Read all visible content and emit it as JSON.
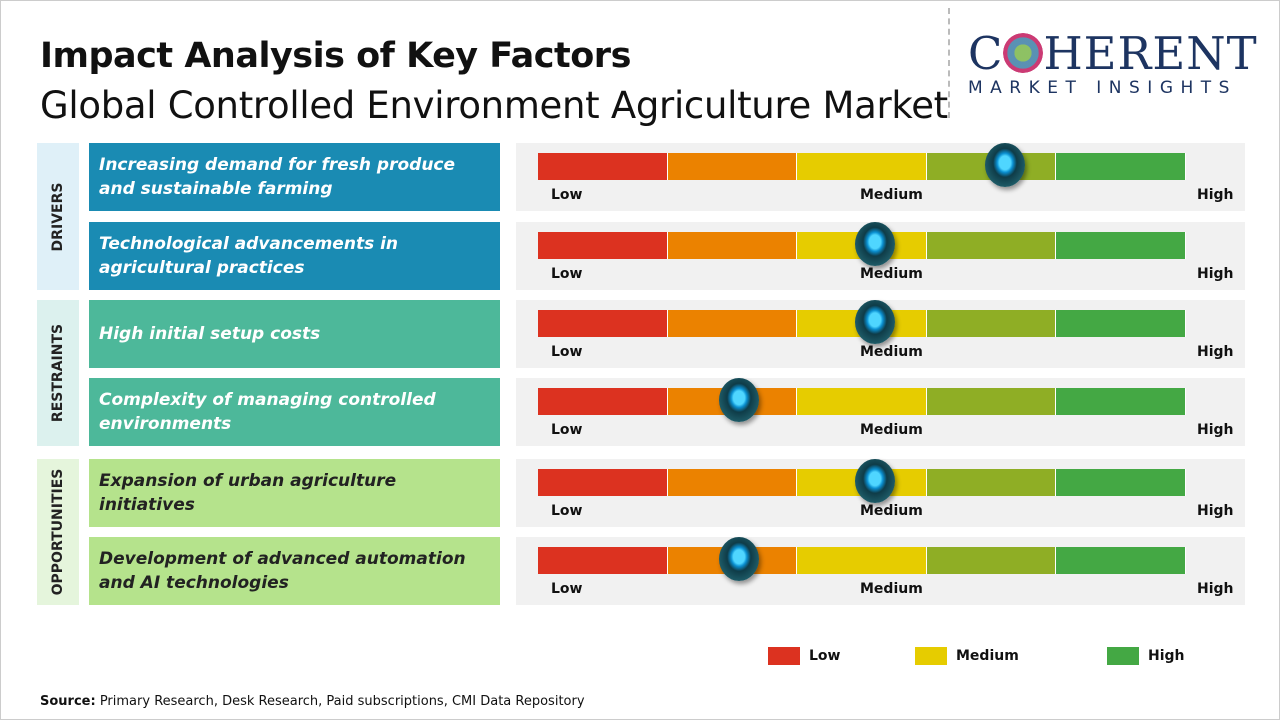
{
  "title": "Impact Analysis of Key Factors",
  "subtitle": "Global Controlled Environment Agriculture Market",
  "logo": {
    "line1": "COHERENT",
    "line2": "MARKET INSIGHTS"
  },
  "scale_labels": {
    "low": "Low",
    "medium": "Medium",
    "high": "High"
  },
  "segment_colors": [
    "#dc3220",
    "#eb8200",
    "#e6cc00",
    "#8fae25",
    "#44a844"
  ],
  "groups": [
    {
      "label": "DRIVERS",
      "color": "#dff0f8",
      "factor_color": "#1a8bb3",
      "factors": [
        {
          "text": "Increasing demand for fresh produce and sustainable farming",
          "impact": 0.72
        },
        {
          "text": "Technological advancements in agricultural practices",
          "impact": 0.52
        }
      ]
    },
    {
      "label": "RESTRAINTS",
      "color": "#dcf1ee",
      "factor_color": "#4db89a",
      "factors": [
        {
          "text": "High initial setup costs",
          "impact": 0.52
        },
        {
          "text": "Complexity of managing controlled environments",
          "impact": 0.31
        }
      ]
    },
    {
      "label": "OPPORTUNITIES",
      "color": "#e5f5dc",
      "factor_color": "#b5e38c",
      "text_color": "#222",
      "factors": [
        {
          "text": "Expansion of urban agriculture initiatives",
          "impact": 0.52
        },
        {
          "text": "Development of advanced automation and AI technologies",
          "impact": 0.31
        }
      ]
    }
  ],
  "legend": [
    {
      "label": "Low",
      "color": "#dc3220"
    },
    {
      "label": "Medium",
      "color": "#e6cc00"
    },
    {
      "label": "High",
      "color": "#44a844"
    }
  ],
  "source": {
    "label": "Source:",
    "text": " Primary Research, Desk Research, Paid subscriptions, CMI Data Repository"
  }
}
